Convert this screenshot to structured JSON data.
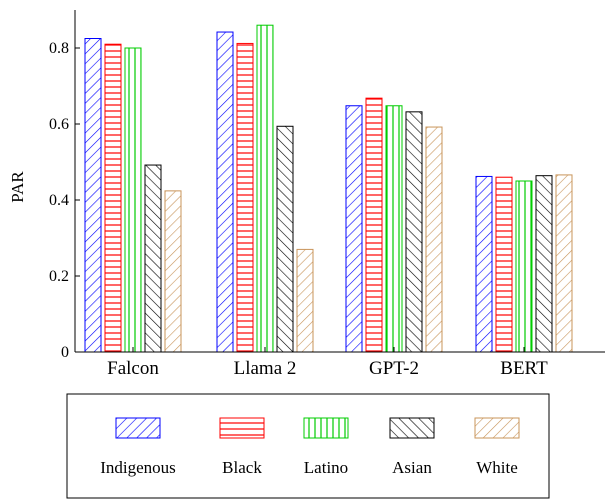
{
  "chart_data": {
    "type": "bar",
    "title": "",
    "xlabel": "",
    "ylabel": "PAR",
    "ylim": [
      0,
      0.9
    ],
    "yticks": [
      0,
      0.2,
      0.4,
      0.6,
      0.8
    ],
    "grid": false,
    "legend_position": "bottom",
    "categories": [
      "Falcon",
      "Llama 2",
      "GPT-2",
      "BERT"
    ],
    "series": [
      {
        "name": "Indigenous",
        "color": "#0000ff",
        "pattern": "diagonal-up",
        "values": [
          0.825,
          0.842,
          0.648,
          0.462
        ]
      },
      {
        "name": "Black",
        "color": "#ff0000",
        "pattern": "horizontal-lines",
        "values": [
          0.81,
          0.812,
          0.668,
          0.46
        ]
      },
      {
        "name": "Latino",
        "color": "#00cc00",
        "pattern": "vertical-lines",
        "values": [
          0.8,
          0.86,
          0.648,
          0.45
        ]
      },
      {
        "name": "Asian",
        "color": "#000000",
        "pattern": "diagonal-down",
        "values": [
          0.492,
          0.594,
          0.632,
          0.464
        ]
      },
      {
        "name": "White",
        "color": "#c8945a",
        "pattern": "diagonal-up",
        "values": [
          0.424,
          0.27,
          0.592,
          0.466
        ]
      }
    ]
  }
}
